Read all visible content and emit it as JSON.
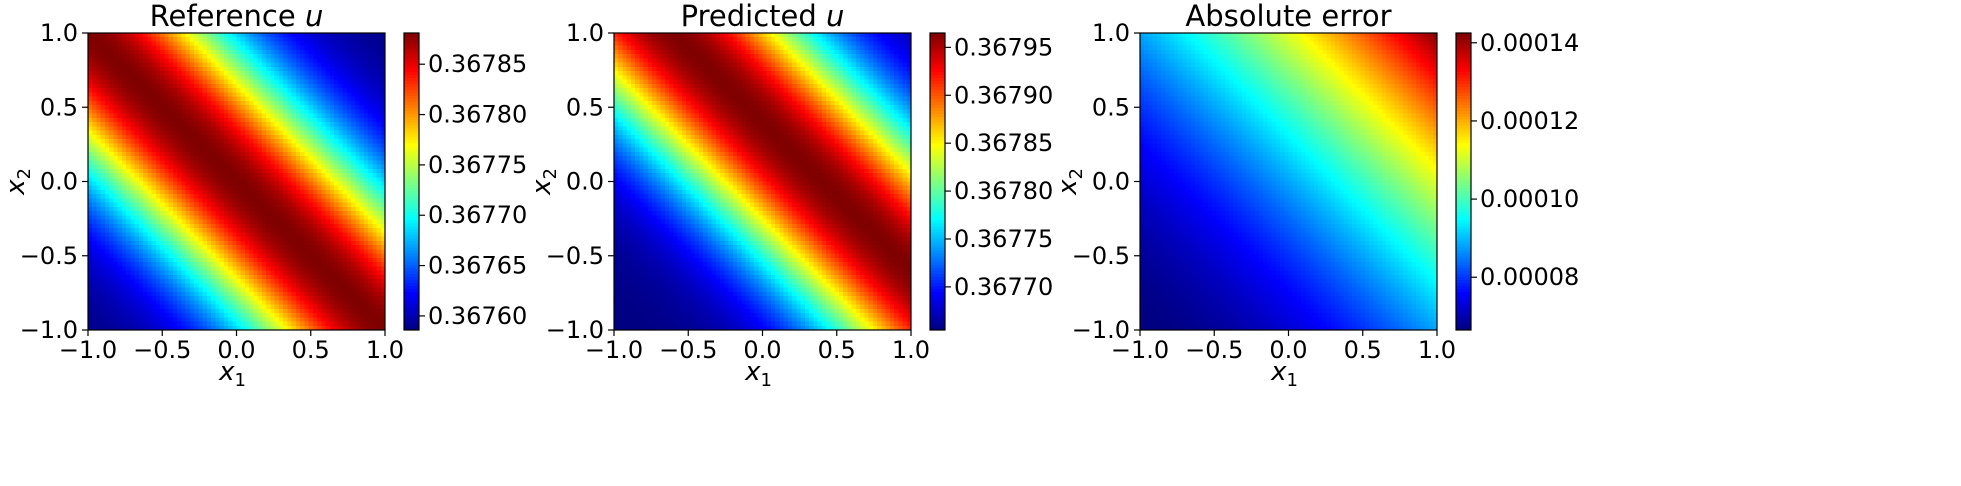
{
  "chart_data": [
    {
      "type": "heatmap",
      "title": "Reference u",
      "title_main": "Reference ",
      "title_var": "u",
      "xlabel": "x1",
      "xlabel_base": "x",
      "xlabel_sub": "1",
      "ylabel": "x2",
      "ylabel_base": "x",
      "ylabel_sub": "2",
      "xlim": [
        -1.0,
        1.0
      ],
      "ylim": [
        -1.0,
        1.0
      ],
      "xticks": [
        "−1.0",
        "−0.5",
        "0.0",
        "0.5",
        "1.0"
      ],
      "yticks": [
        "−1.0",
        "−0.5",
        "0.0",
        "0.5",
        "1.0"
      ],
      "colormap": "jet",
      "clim": [
        0.367586,
        0.367881
      ],
      "colorbar_ticks": [
        0.3676,
        0.36765,
        0.3677,
        0.36775,
        0.3678,
        0.36785
      ],
      "colorbar_tick_labels": [
        "0.36760",
        "0.36765",
        "0.36770",
        "0.36775",
        "0.36780",
        "0.36785"
      ],
      "field": "0.367586 + (0.367881 - 0.367586) * exp(-1.1 * (x1 + x2)^2)"
    },
    {
      "type": "heatmap",
      "title": "Predicted u",
      "title_main": "Predicted ",
      "title_var": "u",
      "xlabel": "x1",
      "xlabel_base": "x",
      "xlabel_sub": "1",
      "ylabel": "x2",
      "ylabel_base": "x",
      "ylabel_sub": "2",
      "xlim": [
        -1.0,
        1.0
      ],
      "ylim": [
        -1.0,
        1.0
      ],
      "xticks": [
        "−1.0",
        "−0.5",
        "0.0",
        "0.5",
        "1.0"
      ],
      "yticks": [
        "−1.0",
        "−0.5",
        "0.0",
        "0.5",
        "1.0"
      ],
      "colormap": "jet",
      "clim": [
        0.367655,
        0.367965
      ],
      "colorbar_ticks": [
        0.3677,
        0.36775,
        0.3678,
        0.36785,
        0.3679,
        0.36795
      ],
      "colorbar_tick_labels": [
        "0.36770",
        "0.36775",
        "0.36780",
        "0.36785",
        "0.36790",
        "0.36795"
      ],
      "field": "0.367655 + (0.367965 - 0.367655) * exp(-1.1 * (x1 + x2 - 0.4)^2)"
    },
    {
      "type": "heatmap",
      "title": "Absolute error",
      "title_main": "Absolute error",
      "title_var": "",
      "xlabel": "x1",
      "xlabel_base": "x",
      "xlabel_sub": "1",
      "ylabel": "x2",
      "ylabel_base": "x",
      "ylabel_sub": "2",
      "xlim": [
        -1.0,
        1.0
      ],
      "ylim": [
        -1.0,
        1.0
      ],
      "xticks": [
        "−1.0",
        "−0.5",
        "0.0",
        "0.5",
        "1.0"
      ],
      "yticks": [
        "−1.0",
        "−0.5",
        "0.0",
        "0.5",
        "1.0"
      ],
      "colormap": "jet",
      "clim": [
        6.65e-05,
        0.0001425
      ],
      "colorbar_ticks": [
        8e-05,
        0.0001,
        0.00012,
        0.00014
      ],
      "colorbar_tick_labels": [
        "0.00008",
        "0.00010",
        "0.00012",
        "0.00014"
      ],
      "field": "0.0000665 + 0.000076 * ((x1 + x2 + 2) / 4)^1.8"
    }
  ]
}
